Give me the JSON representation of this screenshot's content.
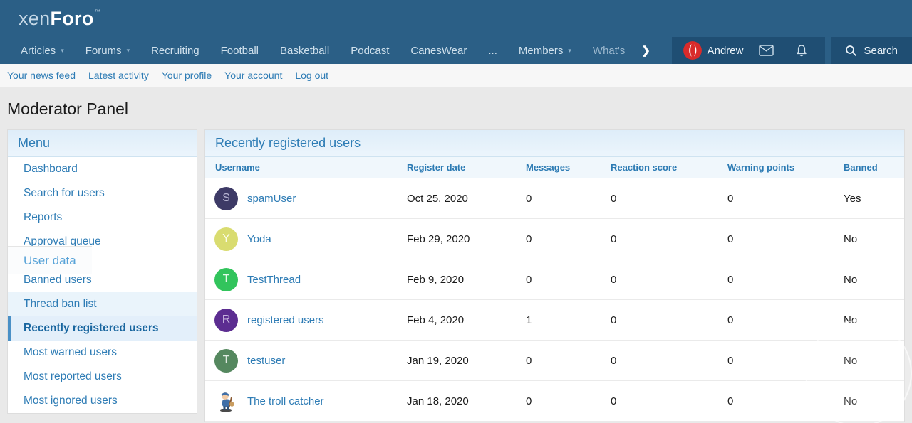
{
  "header": {
    "logo": {
      "xen": "xen",
      "foro": "Foro",
      "mark": "™"
    }
  },
  "nav": {
    "items": [
      {
        "label": "Articles",
        "dropdown": true
      },
      {
        "label": "Forums",
        "dropdown": true
      },
      {
        "label": "Recruiting"
      },
      {
        "label": "Football"
      },
      {
        "label": "Basketball"
      },
      {
        "label": "Podcast"
      },
      {
        "label": "CanesWear"
      },
      {
        "label": "..."
      },
      {
        "label": "Members",
        "dropdown": true
      },
      {
        "label": "What's",
        "faded": true
      }
    ],
    "icons": {
      "overflow_chevron": "chevron-right-icon",
      "mail": "mail-icon",
      "alerts": "bell-icon",
      "search": "search-icon",
      "dropdown": "chevron-down-icon"
    },
    "user": {
      "name": "Andrew",
      "avatar": "red-swirl-logo"
    },
    "search_label": "Search"
  },
  "subnav": {
    "items": [
      "Your news feed",
      "Latest activity",
      "Your profile",
      "Your account",
      "Log out"
    ]
  },
  "page_title": "Moderator Panel",
  "sidebar": {
    "title": "Menu",
    "items": [
      {
        "label": "Dashboard"
      },
      {
        "label": "Search for users"
      },
      {
        "label": "Reports"
      },
      {
        "label": "Approval queue"
      },
      {
        "label": "User data",
        "type": "section"
      },
      {
        "label": "Banned users"
      },
      {
        "label": "Thread ban list",
        "state": "hover"
      },
      {
        "label": "Recently registered users",
        "state": "selected"
      },
      {
        "label": "Most warned users"
      },
      {
        "label": "Most reported users"
      },
      {
        "label": "Most ignored users",
        "state": "clipped"
      }
    ]
  },
  "main": {
    "title": "Recently registered users",
    "table": {
      "columns": [
        "Username",
        "Register date",
        "Messages",
        "Reaction score",
        "Warning points",
        "Banned"
      ],
      "rows": [
        {
          "username": "spamUser",
          "avatar": {
            "kind": "letter",
            "letter": "S",
            "bg": "#3d3a66",
            "fg": "#b9b7d4"
          },
          "register_date": "Oct 25, 2020",
          "messages": "0",
          "reaction_score": "0",
          "warning_points": "0",
          "banned": "Yes"
        },
        {
          "username": "Yoda",
          "avatar": {
            "kind": "letter",
            "letter": "Y",
            "bg": "#d9dc70",
            "fg": "#fbfce8"
          },
          "register_date": "Feb 29, 2020",
          "messages": "0",
          "reaction_score": "0",
          "warning_points": "0",
          "banned": "No"
        },
        {
          "username": "TestThread",
          "avatar": {
            "kind": "letter",
            "letter": "T",
            "bg": "#32c45c",
            "fg": "#e2f9e9"
          },
          "register_date": "Feb 9, 2020",
          "messages": "0",
          "reaction_score": "0",
          "warning_points": "0",
          "banned": "No"
        },
        {
          "username": "registered users",
          "avatar": {
            "kind": "letter",
            "letter": "R",
            "bg": "#5c2d91",
            "fg": "#c6b3dd"
          },
          "register_date": "Feb 4, 2020",
          "messages": "1",
          "reaction_score": "0",
          "warning_points": "0",
          "banned": "No"
        },
        {
          "username": "testuser",
          "avatar": {
            "kind": "letter",
            "letter": "T",
            "bg": "#55885f",
            "fg": "#dfeae1"
          },
          "register_date": "Jan 19, 2020",
          "messages": "0",
          "reaction_score": "0",
          "warning_points": "0",
          "banned": "No"
        },
        {
          "username": "The troll catcher",
          "avatar": {
            "kind": "image",
            "name": "troll-catcher-cartoon"
          },
          "register_date": "Jan 18, 2020",
          "messages": "0",
          "reaction_score": "0",
          "warning_points": "0",
          "banned": "No"
        }
      ]
    }
  },
  "colors": {
    "header_bg": "#2b5f86",
    "visitor_panel_bg": "#1f4e73",
    "link": "#2e7cb5",
    "panel_title": "#2d7cb5",
    "selected_accent": "#4a90c6",
    "selected_bg": "#e3effa"
  }
}
